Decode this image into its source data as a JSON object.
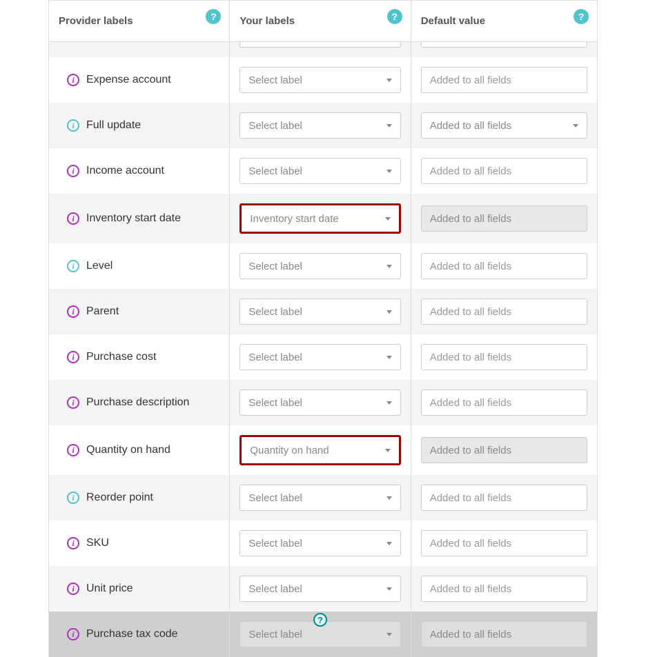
{
  "headers": {
    "provider": "Provider labels",
    "your": "Your labels",
    "default": "Default value"
  },
  "placeholders": {
    "select": "Select label",
    "default_input": "Added to all fields"
  },
  "colors": {
    "info_purple": "#b030c0",
    "info_blue": "#4fc4cf",
    "highlight_border": "#a00000",
    "help_badge_bg": "#4fc4cf",
    "row_alt_bg": "#f4f4f4",
    "disabled_row_bg": "#cfcfcf"
  },
  "rows": [
    {
      "label": "",
      "icon_color": "",
      "select_value": "",
      "highlighted": false,
      "truncated": true,
      "default_type": "input",
      "default_disabled": false,
      "select_disabled": false,
      "floating_help": false
    },
    {
      "label": "Expense account",
      "icon_color": "purple",
      "select_value": "Select label",
      "highlighted": false,
      "truncated": false,
      "default_type": "input",
      "default_disabled": false,
      "select_disabled": false,
      "floating_help": false
    },
    {
      "label": "Full update",
      "icon_color": "blue",
      "select_value": "Select label",
      "highlighted": false,
      "truncated": false,
      "default_type": "select",
      "default_disabled": false,
      "select_disabled": false,
      "floating_help": false
    },
    {
      "label": "Income account",
      "icon_color": "purple",
      "select_value": "Select label",
      "highlighted": false,
      "truncated": false,
      "default_type": "input",
      "default_disabled": false,
      "select_disabled": false,
      "floating_help": false
    },
    {
      "label": "Inventory start date",
      "icon_color": "purple",
      "select_value": "Inventory start date",
      "highlighted": true,
      "truncated": false,
      "default_type": "input",
      "default_disabled": true,
      "select_disabled": false,
      "floating_help": false
    },
    {
      "label": "Level",
      "icon_color": "blue",
      "select_value": "Select label",
      "highlighted": false,
      "truncated": false,
      "default_type": "input",
      "default_disabled": false,
      "select_disabled": false,
      "floating_help": false
    },
    {
      "label": "Parent",
      "icon_color": "purple",
      "select_value": "Select label",
      "highlighted": false,
      "truncated": false,
      "default_type": "input",
      "default_disabled": false,
      "select_disabled": false,
      "floating_help": false
    },
    {
      "label": "Purchase cost",
      "icon_color": "purple",
      "select_value": "Select label",
      "highlighted": false,
      "truncated": false,
      "default_type": "input",
      "default_disabled": false,
      "select_disabled": false,
      "floating_help": false
    },
    {
      "label": "Purchase description",
      "icon_color": "purple",
      "select_value": "Select label",
      "highlighted": false,
      "truncated": false,
      "default_type": "input",
      "default_disabled": false,
      "select_disabled": false,
      "floating_help": false
    },
    {
      "label": "Quantity on hand",
      "icon_color": "purple",
      "select_value": "Quantity on hand",
      "highlighted": true,
      "truncated": false,
      "default_type": "input",
      "default_disabled": true,
      "select_disabled": false,
      "floating_help": false
    },
    {
      "label": "Reorder point",
      "icon_color": "blue",
      "select_value": "Select label",
      "highlighted": false,
      "truncated": false,
      "default_type": "input",
      "default_disabled": false,
      "select_disabled": false,
      "floating_help": false
    },
    {
      "label": "SKU",
      "icon_color": "purple",
      "select_value": "Select label",
      "highlighted": false,
      "truncated": false,
      "default_type": "input",
      "default_disabled": false,
      "select_disabled": false,
      "floating_help": false
    },
    {
      "label": "Unit price",
      "icon_color": "purple",
      "select_value": "Select label",
      "highlighted": false,
      "truncated": false,
      "default_type": "input",
      "default_disabled": false,
      "select_disabled": false,
      "floating_help": false
    },
    {
      "label": "Purchase tax code",
      "icon_color": "purple",
      "select_value": "Select label",
      "highlighted": false,
      "truncated": false,
      "default_type": "input",
      "default_disabled": true,
      "select_disabled": true,
      "floating_help": true,
      "dark": true
    }
  ]
}
